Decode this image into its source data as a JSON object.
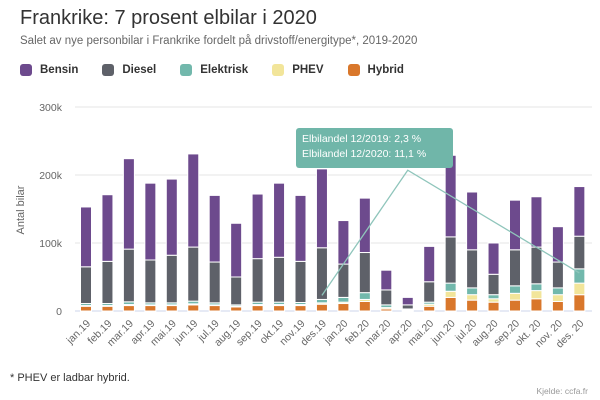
{
  "header": {
    "title": "Frankrike: 7 prosent elbilar i 2020",
    "subtitle": "Salet av nye personbilar i Frankrike fordelt på drivstoff/energitype*, 2019-2020"
  },
  "legend": [
    {
      "label": "Bensin",
      "color": "#6d4a8d"
    },
    {
      "label": "Diesel",
      "color": "#5e6169"
    },
    {
      "label": "Elektrisk",
      "color": "#72b8ac"
    },
    {
      "label": "PHEV",
      "color": "#f2e59a"
    },
    {
      "label": "Hybrid",
      "color": "#d9772b"
    }
  ],
  "annotation": {
    "line1": "Elbilandel 12/2019: 2,3 %",
    "line2": "Elbilandel 12/2020: 11,1 %",
    "color": "#70b6a9",
    "line_points": [
      {
        "category": "des.19",
        "y": 23000
      },
      {
        "category": "apr.20",
        "y": 207000
      },
      {
        "category": "des. 20",
        "y": 56000
      }
    ]
  },
  "footnote": "* PHEV er ladbar hybrid.",
  "source": "Kjelde: ccfa.fr",
  "chart_data": {
    "type": "bar",
    "stacked": true,
    "title": "Frankrike: 7 prosent elbilar i 2020",
    "xlabel": "",
    "ylabel": "Antal bilar",
    "ylim": [
      0,
      300000
    ],
    "yticks": [
      {
        "value": 0,
        "label": "0"
      },
      {
        "value": 100000,
        "label": "100k"
      },
      {
        "value": 200000,
        "label": "200k"
      },
      {
        "value": 300000,
        "label": "300k"
      }
    ],
    "grid": true,
    "legend_position": "top-left",
    "categories": [
      "jan.19",
      "feb.19",
      "mar.19",
      "apr.19",
      "mai.19",
      "jun.19",
      "jul.19",
      "aug.19",
      "sep.19",
      "okt.19",
      "nov.19",
      "des.19",
      "jan.20",
      "feb.20",
      "mar.20",
      "apr.20",
      "mai.20",
      "jun.20",
      "jul.20",
      "aug.20",
      "sep.20",
      "okt. 20",
      "nov. 20",
      "des. 20"
    ],
    "series": [
      {
        "name": "Hybrid",
        "color": "#d9772b",
        "values": [
          7000,
          7000,
          8000,
          8000,
          8000,
          9000,
          8000,
          6000,
          8000,
          8000,
          8000,
          10000,
          11000,
          14000,
          3000,
          1000,
          7000,
          20000,
          16000,
          13000,
          16000,
          18000,
          14000,
          24000
        ]
      },
      {
        "name": "PHEV",
        "color": "#f2e59a",
        "values": [
          1000,
          1000,
          1500,
          1000,
          1000,
          1500,
          1000,
          1000,
          1500,
          1500,
          1500,
          2000,
          2000,
          3000,
          2000,
          500,
          3000,
          9000,
          8000,
          5000,
          10000,
          12000,
          10000,
          17000
        ]
      },
      {
        "name": "Elektrisk",
        "color": "#72b8ac",
        "values": [
          3000,
          3000,
          4000,
          3000,
          3000,
          4000,
          3000,
          2000,
          3500,
          3500,
          3000,
          5000,
          7000,
          10000,
          4000,
          1500,
          3000,
          12000,
          10000,
          6000,
          11000,
          10000,
          10000,
          21000
        ]
      },
      {
        "name": "Diesel",
        "color": "#5e6169",
        "values": [
          54000,
          62000,
          77500,
          63000,
          70000,
          79500,
          60000,
          41000,
          64000,
          66000,
          60500,
          76000,
          49000,
          59000,
          22000,
          6000,
          30000,
          68000,
          56000,
          30000,
          53000,
          54000,
          38000,
          48000
        ]
      },
      {
        "name": "Bensin",
        "color": "#6d4a8d",
        "values": [
          88000,
          98000,
          133000,
          113000,
          112000,
          137000,
          98000,
          79000,
          95000,
          109000,
          97000,
          116000,
          64000,
          80000,
          29000,
          11000,
          52000,
          120000,
          85000,
          46000,
          73000,
          74000,
          52000,
          73000
        ]
      }
    ]
  }
}
